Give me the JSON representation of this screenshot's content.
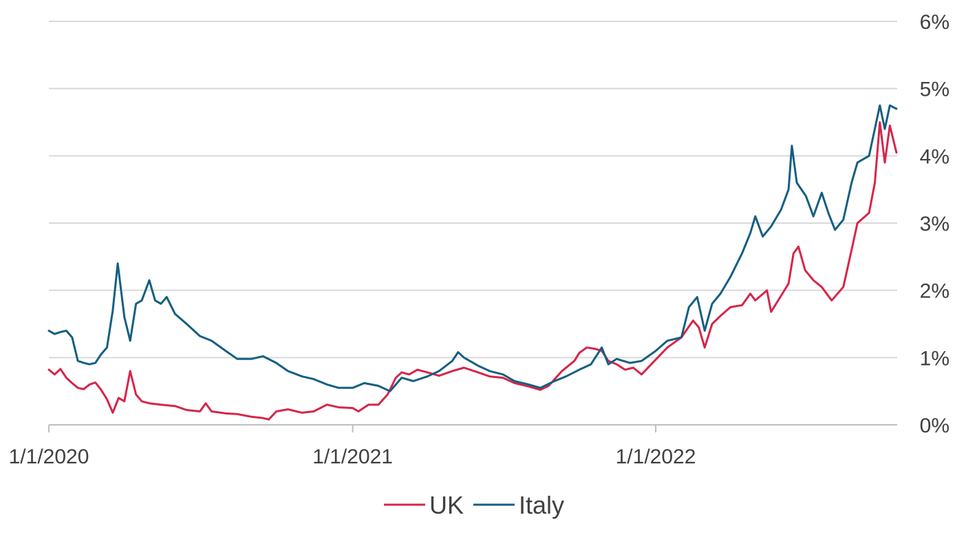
{
  "chart_data": {
    "type": "line",
    "title": "",
    "xlabel": "",
    "ylabel": "",
    "xlim": [
      "2020-01-01",
      "2022-10-18"
    ],
    "ylim": [
      0,
      6
    ],
    "y_axis_position": "right",
    "yticks": [
      0,
      1,
      2,
      3,
      4,
      5,
      6
    ],
    "ytick_labels": [
      "0%",
      "1%",
      "2%",
      "3%",
      "4%",
      "5%",
      "6%"
    ],
    "xticks": [
      "2020-01-01",
      "2021-01-01",
      "2022-01-01"
    ],
    "xtick_labels": [
      "1/1/2020",
      "1/1/2021",
      "1/1/2022"
    ],
    "grid": true,
    "legend_position": "bottom-center",
    "series": [
      {
        "name": "UK",
        "color": "#d6254a",
        "points": [
          [
            "2020-01-01",
            0.82
          ],
          [
            "2020-01-08",
            0.75
          ],
          [
            "2020-01-15",
            0.83
          ],
          [
            "2020-01-22",
            0.7
          ],
          [
            "2020-01-29",
            0.62
          ],
          [
            "2020-02-05",
            0.55
          ],
          [
            "2020-02-12",
            0.53
          ],
          [
            "2020-02-19",
            0.6
          ],
          [
            "2020-02-26",
            0.63
          ],
          [
            "2020-03-04",
            0.52
          ],
          [
            "2020-03-11",
            0.38
          ],
          [
            "2020-03-18",
            0.18
          ],
          [
            "2020-03-25",
            0.4
          ],
          [
            "2020-04-01",
            0.35
          ],
          [
            "2020-04-08",
            0.8
          ],
          [
            "2020-04-15",
            0.45
          ],
          [
            "2020-04-22",
            0.35
          ],
          [
            "2020-05-01",
            0.32
          ],
          [
            "2020-05-15",
            0.3
          ],
          [
            "2020-06-01",
            0.28
          ],
          [
            "2020-06-15",
            0.22
          ],
          [
            "2020-07-01",
            0.2
          ],
          [
            "2020-07-08",
            0.32
          ],
          [
            "2020-07-15",
            0.2
          ],
          [
            "2020-08-01",
            0.17
          ],
          [
            "2020-08-15",
            0.16
          ],
          [
            "2020-09-01",
            0.12
          ],
          [
            "2020-09-15",
            0.1
          ],
          [
            "2020-09-22",
            0.08
          ],
          [
            "2020-10-01",
            0.2
          ],
          [
            "2020-10-15",
            0.23
          ],
          [
            "2020-11-01",
            0.18
          ],
          [
            "2020-11-15",
            0.2
          ],
          [
            "2020-12-01",
            0.3
          ],
          [
            "2020-12-15",
            0.26
          ],
          [
            "2021-01-01",
            0.25
          ],
          [
            "2021-01-08",
            0.2
          ],
          [
            "2021-01-20",
            0.3
          ],
          [
            "2021-02-01",
            0.3
          ],
          [
            "2021-02-12",
            0.45
          ],
          [
            "2021-02-22",
            0.7
          ],
          [
            "2021-03-01",
            0.78
          ],
          [
            "2021-03-10",
            0.75
          ],
          [
            "2021-03-20",
            0.82
          ],
          [
            "2021-04-01",
            0.78
          ],
          [
            "2021-04-15",
            0.73
          ],
          [
            "2021-05-01",
            0.8
          ],
          [
            "2021-05-15",
            0.85
          ],
          [
            "2021-06-01",
            0.78
          ],
          [
            "2021-06-15",
            0.72
          ],
          [
            "2021-07-01",
            0.7
          ],
          [
            "2021-07-15",
            0.62
          ],
          [
            "2021-08-01",
            0.57
          ],
          [
            "2021-08-15",
            0.52
          ],
          [
            "2021-08-25",
            0.58
          ],
          [
            "2021-09-10",
            0.8
          ],
          [
            "2021-09-25",
            0.95
          ],
          [
            "2021-10-01",
            1.07
          ],
          [
            "2021-10-10",
            1.15
          ],
          [
            "2021-10-20",
            1.13
          ],
          [
            "2021-10-28",
            1.1
          ],
          [
            "2021-11-05",
            0.95
          ],
          [
            "2021-11-15",
            0.9
          ],
          [
            "2021-11-25",
            0.82
          ],
          [
            "2021-12-05",
            0.85
          ],
          [
            "2021-12-15",
            0.75
          ],
          [
            "2022-01-01",
            0.97
          ],
          [
            "2022-01-15",
            1.15
          ],
          [
            "2022-02-01",
            1.3
          ],
          [
            "2022-02-15",
            1.55
          ],
          [
            "2022-02-22",
            1.45
          ],
          [
            "2022-03-01",
            1.15
          ],
          [
            "2022-03-10",
            1.5
          ],
          [
            "2022-03-20",
            1.62
          ],
          [
            "2022-04-01",
            1.75
          ],
          [
            "2022-04-15",
            1.78
          ],
          [
            "2022-04-25",
            1.95
          ],
          [
            "2022-05-01",
            1.85
          ],
          [
            "2022-05-15",
            2.0
          ],
          [
            "2022-05-20",
            1.68
          ],
          [
            "2022-06-01",
            1.92
          ],
          [
            "2022-06-10",
            2.1
          ],
          [
            "2022-06-16",
            2.55
          ],
          [
            "2022-06-22",
            2.65
          ],
          [
            "2022-06-30",
            2.3
          ],
          [
            "2022-07-10",
            2.15
          ],
          [
            "2022-07-20",
            2.05
          ],
          [
            "2022-08-01",
            1.85
          ],
          [
            "2022-08-15",
            2.05
          ],
          [
            "2022-08-25",
            2.6
          ],
          [
            "2022-09-01",
            3.0
          ],
          [
            "2022-09-15",
            3.15
          ],
          [
            "2022-09-22",
            3.6
          ],
          [
            "2022-09-28",
            4.5
          ],
          [
            "2022-10-04",
            3.9
          ],
          [
            "2022-10-10",
            4.45
          ],
          [
            "2022-10-18",
            4.05
          ]
        ]
      },
      {
        "name": "Italy",
        "color": "#145f82",
        "points": [
          [
            "2020-01-01",
            1.4
          ],
          [
            "2020-01-08",
            1.35
          ],
          [
            "2020-01-15",
            1.38
          ],
          [
            "2020-01-22",
            1.4
          ],
          [
            "2020-01-29",
            1.3
          ],
          [
            "2020-02-05",
            0.95
          ],
          [
            "2020-02-12",
            0.92
          ],
          [
            "2020-02-19",
            0.9
          ],
          [
            "2020-02-26",
            0.92
          ],
          [
            "2020-03-04",
            1.05
          ],
          [
            "2020-03-11",
            1.15
          ],
          [
            "2020-03-18",
            1.7
          ],
          [
            "2020-03-24",
            2.4
          ],
          [
            "2020-04-01",
            1.6
          ],
          [
            "2020-04-08",
            1.25
          ],
          [
            "2020-04-15",
            1.8
          ],
          [
            "2020-04-22",
            1.85
          ],
          [
            "2020-05-01",
            2.15
          ],
          [
            "2020-05-08",
            1.85
          ],
          [
            "2020-05-15",
            1.8
          ],
          [
            "2020-05-22",
            1.9
          ],
          [
            "2020-06-01",
            1.65
          ],
          [
            "2020-06-15",
            1.5
          ],
          [
            "2020-07-01",
            1.32
          ],
          [
            "2020-07-15",
            1.25
          ],
          [
            "2020-08-01",
            1.1
          ],
          [
            "2020-08-15",
            0.98
          ],
          [
            "2020-09-01",
            0.98
          ],
          [
            "2020-09-15",
            1.02
          ],
          [
            "2020-10-01",
            0.92
          ],
          [
            "2020-10-15",
            0.8
          ],
          [
            "2020-11-01",
            0.72
          ],
          [
            "2020-11-15",
            0.68
          ],
          [
            "2020-12-01",
            0.6
          ],
          [
            "2020-12-15",
            0.55
          ],
          [
            "2021-01-01",
            0.55
          ],
          [
            "2021-01-15",
            0.62
          ],
          [
            "2021-02-01",
            0.58
          ],
          [
            "2021-02-15",
            0.5
          ],
          [
            "2021-03-01",
            0.7
          ],
          [
            "2021-03-15",
            0.65
          ],
          [
            "2021-04-01",
            0.72
          ],
          [
            "2021-04-15",
            0.8
          ],
          [
            "2021-05-01",
            0.95
          ],
          [
            "2021-05-08",
            1.08
          ],
          [
            "2021-05-15",
            1.0
          ],
          [
            "2021-06-01",
            0.88
          ],
          [
            "2021-06-15",
            0.8
          ],
          [
            "2021-07-01",
            0.75
          ],
          [
            "2021-07-15",
            0.65
          ],
          [
            "2021-08-01",
            0.6
          ],
          [
            "2021-08-15",
            0.55
          ],
          [
            "2021-09-01",
            0.65
          ],
          [
            "2021-09-15",
            0.72
          ],
          [
            "2021-10-01",
            0.82
          ],
          [
            "2021-10-15",
            0.9
          ],
          [
            "2021-10-28",
            1.15
          ],
          [
            "2021-11-05",
            0.9
          ],
          [
            "2021-11-15",
            0.98
          ],
          [
            "2021-12-01",
            0.92
          ],
          [
            "2021-12-15",
            0.95
          ],
          [
            "2022-01-01",
            1.1
          ],
          [
            "2022-01-15",
            1.25
          ],
          [
            "2022-02-01",
            1.3
          ],
          [
            "2022-02-10",
            1.75
          ],
          [
            "2022-02-20",
            1.9
          ],
          [
            "2022-03-01",
            1.4
          ],
          [
            "2022-03-10",
            1.8
          ],
          [
            "2022-03-20",
            1.95
          ],
          [
            "2022-04-01",
            2.2
          ],
          [
            "2022-04-15",
            2.55
          ],
          [
            "2022-04-25",
            2.85
          ],
          [
            "2022-05-01",
            3.1
          ],
          [
            "2022-05-10",
            2.8
          ],
          [
            "2022-05-20",
            2.95
          ],
          [
            "2022-06-01",
            3.2
          ],
          [
            "2022-06-10",
            3.5
          ],
          [
            "2022-06-14",
            4.15
          ],
          [
            "2022-06-20",
            3.6
          ],
          [
            "2022-07-01",
            3.4
          ],
          [
            "2022-07-10",
            3.1
          ],
          [
            "2022-07-20",
            3.45
          ],
          [
            "2022-07-28",
            3.15
          ],
          [
            "2022-08-05",
            2.9
          ],
          [
            "2022-08-15",
            3.05
          ],
          [
            "2022-08-25",
            3.6
          ],
          [
            "2022-09-01",
            3.9
          ],
          [
            "2022-09-15",
            4.0
          ],
          [
            "2022-09-28",
            4.75
          ],
          [
            "2022-10-04",
            4.4
          ],
          [
            "2022-10-10",
            4.75
          ],
          [
            "2022-10-18",
            4.7
          ]
        ]
      }
    ]
  }
}
